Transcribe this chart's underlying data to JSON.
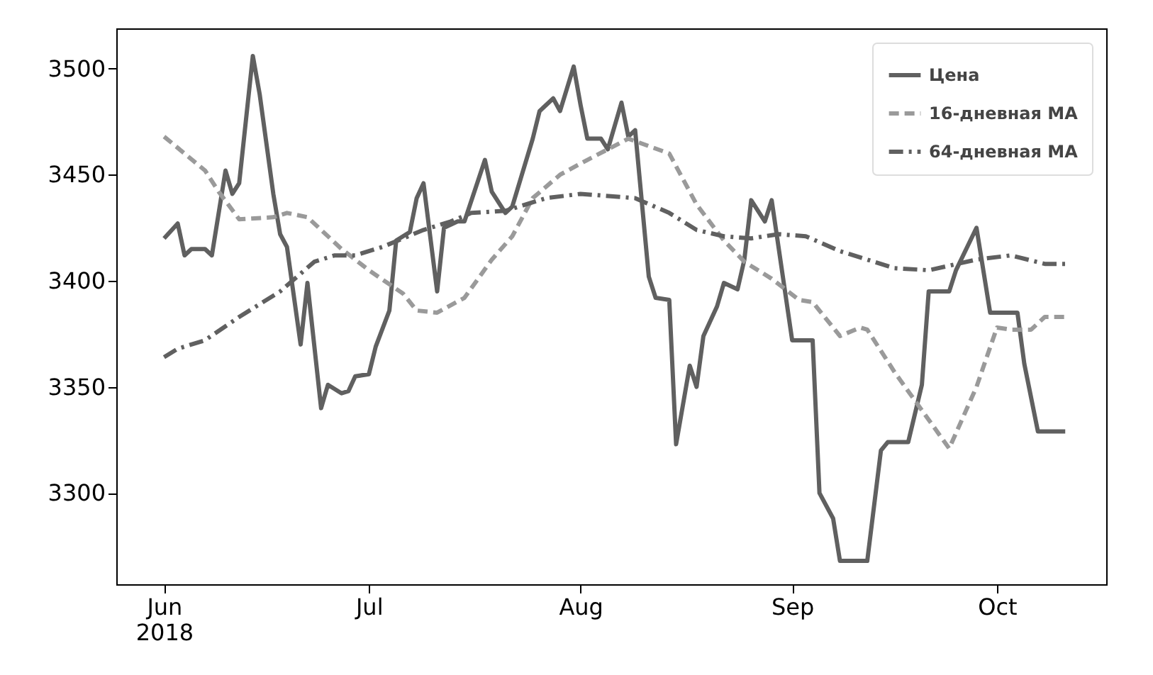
{
  "chart_data": {
    "type": "line",
    "xlim": [
      "2018-05-25",
      "2018-10-17"
    ],
    "ylim": [
      3257,
      3519
    ],
    "xticks": [
      {
        "value": "2018-06-01",
        "label": "Jun\n2018"
      },
      {
        "value": "2018-07-01",
        "label": "Jul"
      },
      {
        "value": "2018-08-01",
        "label": "Aug"
      },
      {
        "value": "2018-09-01",
        "label": "Sep"
      },
      {
        "value": "2018-10-01",
        "label": "Oct"
      }
    ],
    "yticks": [
      3300,
      3350,
      3400,
      3450,
      3500
    ],
    "grid": false,
    "legend": "top right",
    "marker": "none",
    "series": [
      {
        "name": "Цена",
        "color": "#606060",
        "line_style": "solid",
        "x": [
          "2018-06-01",
          "2018-06-03",
          "2018-06-04",
          "2018-06-05",
          "2018-06-07",
          "2018-06-08",
          "2018-06-10",
          "2018-06-11",
          "2018-06-12",
          "2018-06-14",
          "2018-06-15",
          "2018-06-17",
          "2018-06-18",
          "2018-06-19",
          "2018-06-21",
          "2018-06-22",
          "2018-06-24",
          "2018-06-25",
          "2018-06-27",
          "2018-06-28",
          "2018-06-29",
          "2018-07-01",
          "2018-07-02",
          "2018-07-04",
          "2018-07-05",
          "2018-07-07",
          "2018-07-08",
          "2018-07-09",
          "2018-07-11",
          "2018-07-12",
          "2018-07-14",
          "2018-07-15",
          "2018-07-18",
          "2018-07-19",
          "2018-07-21",
          "2018-07-22",
          "2018-07-25",
          "2018-07-26",
          "2018-07-28",
          "2018-07-29",
          "2018-07-31",
          "2018-08-01",
          "2018-08-02",
          "2018-08-04",
          "2018-08-05",
          "2018-08-07",
          "2018-08-08",
          "2018-08-09",
          "2018-08-11",
          "2018-08-12",
          "2018-08-14",
          "2018-08-15",
          "2018-08-17",
          "2018-08-18",
          "2018-08-19",
          "2018-08-21",
          "2018-08-22",
          "2018-08-24",
          "2018-08-25",
          "2018-08-26",
          "2018-08-28",
          "2018-08-29",
          "2018-09-01",
          "2018-09-04",
          "2018-09-05",
          "2018-09-07",
          "2018-09-08",
          "2018-09-12",
          "2018-09-14",
          "2018-09-15",
          "2018-09-18",
          "2018-09-20",
          "2018-09-21",
          "2018-09-24",
          "2018-09-25",
          "2018-09-28",
          "2018-09-30",
          "2018-10-04",
          "2018-10-05",
          "2018-10-07",
          "2018-10-11"
        ],
        "values": [
          3420,
          3427,
          3412,
          3415,
          3415,
          3412,
          3452,
          3441,
          3446,
          3506,
          3488,
          3441,
          3422,
          3416,
          3370,
          3399,
          3340,
          3351,
          3347,
          3348,
          3355,
          3356,
          3369,
          3386,
          3419,
          3423,
          3439,
          3446,
          3395,
          3425,
          3428,
          3428,
          3457,
          3442,
          3432,
          3435,
          3467,
          3480,
          3486,
          3480,
          3501,
          3483,
          3467,
          3467,
          3462,
          3484,
          3468,
          3471,
          3402,
          3392,
          3391,
          3323,
          3360,
          3350,
          3374,
          3388,
          3399,
          3396,
          3410,
          3438,
          3428,
          3438,
          3372,
          3372,
          3300,
          3288,
          3268,
          3268,
          3320,
          3324,
          3324,
          3351,
          3395,
          3395,
          3405,
          3425,
          3385,
          3385,
          3361,
          3329,
          3329
        ]
      },
      {
        "name": "16-дневная МА",
        "color": "#9a9a9a",
        "line_style": "dashed",
        "x": [
          "2018-06-01",
          "2018-06-07",
          "2018-06-09",
          "2018-06-12",
          "2018-06-17",
          "2018-06-19",
          "2018-06-22",
          "2018-06-27",
          "2018-07-01",
          "2018-07-06",
          "2018-07-08",
          "2018-07-11",
          "2018-07-15",
          "2018-07-19",
          "2018-07-22",
          "2018-07-25",
          "2018-07-29",
          "2018-08-02",
          "2018-08-08",
          "2018-08-14",
          "2018-08-18",
          "2018-08-22",
          "2018-08-25",
          "2018-08-29",
          "2018-09-02",
          "2018-09-04",
          "2018-09-08",
          "2018-09-11",
          "2018-09-12",
          "2018-09-16",
          "2018-09-20",
          "2018-09-24",
          "2018-09-28",
          "2018-10-01",
          "2018-10-03",
          "2018-10-06",
          "2018-10-08",
          "2018-10-11"
        ],
        "values": [
          3468,
          3452,
          3442,
          3429,
          3430,
          3432,
          3430,
          3415,
          3405,
          3394,
          3386,
          3385,
          3392,
          3410,
          3421,
          3439,
          3450,
          3457,
          3467,
          3460,
          3436,
          3419,
          3409,
          3401,
          3391,
          3390,
          3374,
          3378,
          3377,
          3357,
          3339,
          3321,
          3350,
          3378,
          3377,
          3377,
          3383,
          3383
        ]
      },
      {
        "name": "64-дневная МА",
        "color": "#606060",
        "line_style": "dashdot",
        "x": [
          "2018-06-01",
          "2018-06-03",
          "2018-06-07",
          "2018-06-12",
          "2018-06-18",
          "2018-06-23",
          "2018-06-26",
          "2018-06-29",
          "2018-07-03",
          "2018-07-09",
          "2018-07-13",
          "2018-07-16",
          "2018-07-21",
          "2018-07-27",
          "2018-08-01",
          "2018-08-09",
          "2018-08-14",
          "2018-08-18",
          "2018-08-22",
          "2018-08-26",
          "2018-08-30",
          "2018-09-03",
          "2018-09-08",
          "2018-09-12",
          "2018-09-16",
          "2018-09-21",
          "2018-09-28",
          "2018-10-03",
          "2018-10-08",
          "2018-10-11"
        ],
        "values": [
          3364,
          3368,
          3372,
          3383,
          3395,
          3409,
          3412,
          3412,
          3416,
          3424,
          3428,
          3432,
          3433,
          3439,
          3441,
          3439,
          3432,
          3424,
          3421,
          3420,
          3422,
          3421,
          3414,
          3410,
          3406,
          3405,
          3410,
          3412,
          3408,
          3408
        ]
      }
    ]
  }
}
